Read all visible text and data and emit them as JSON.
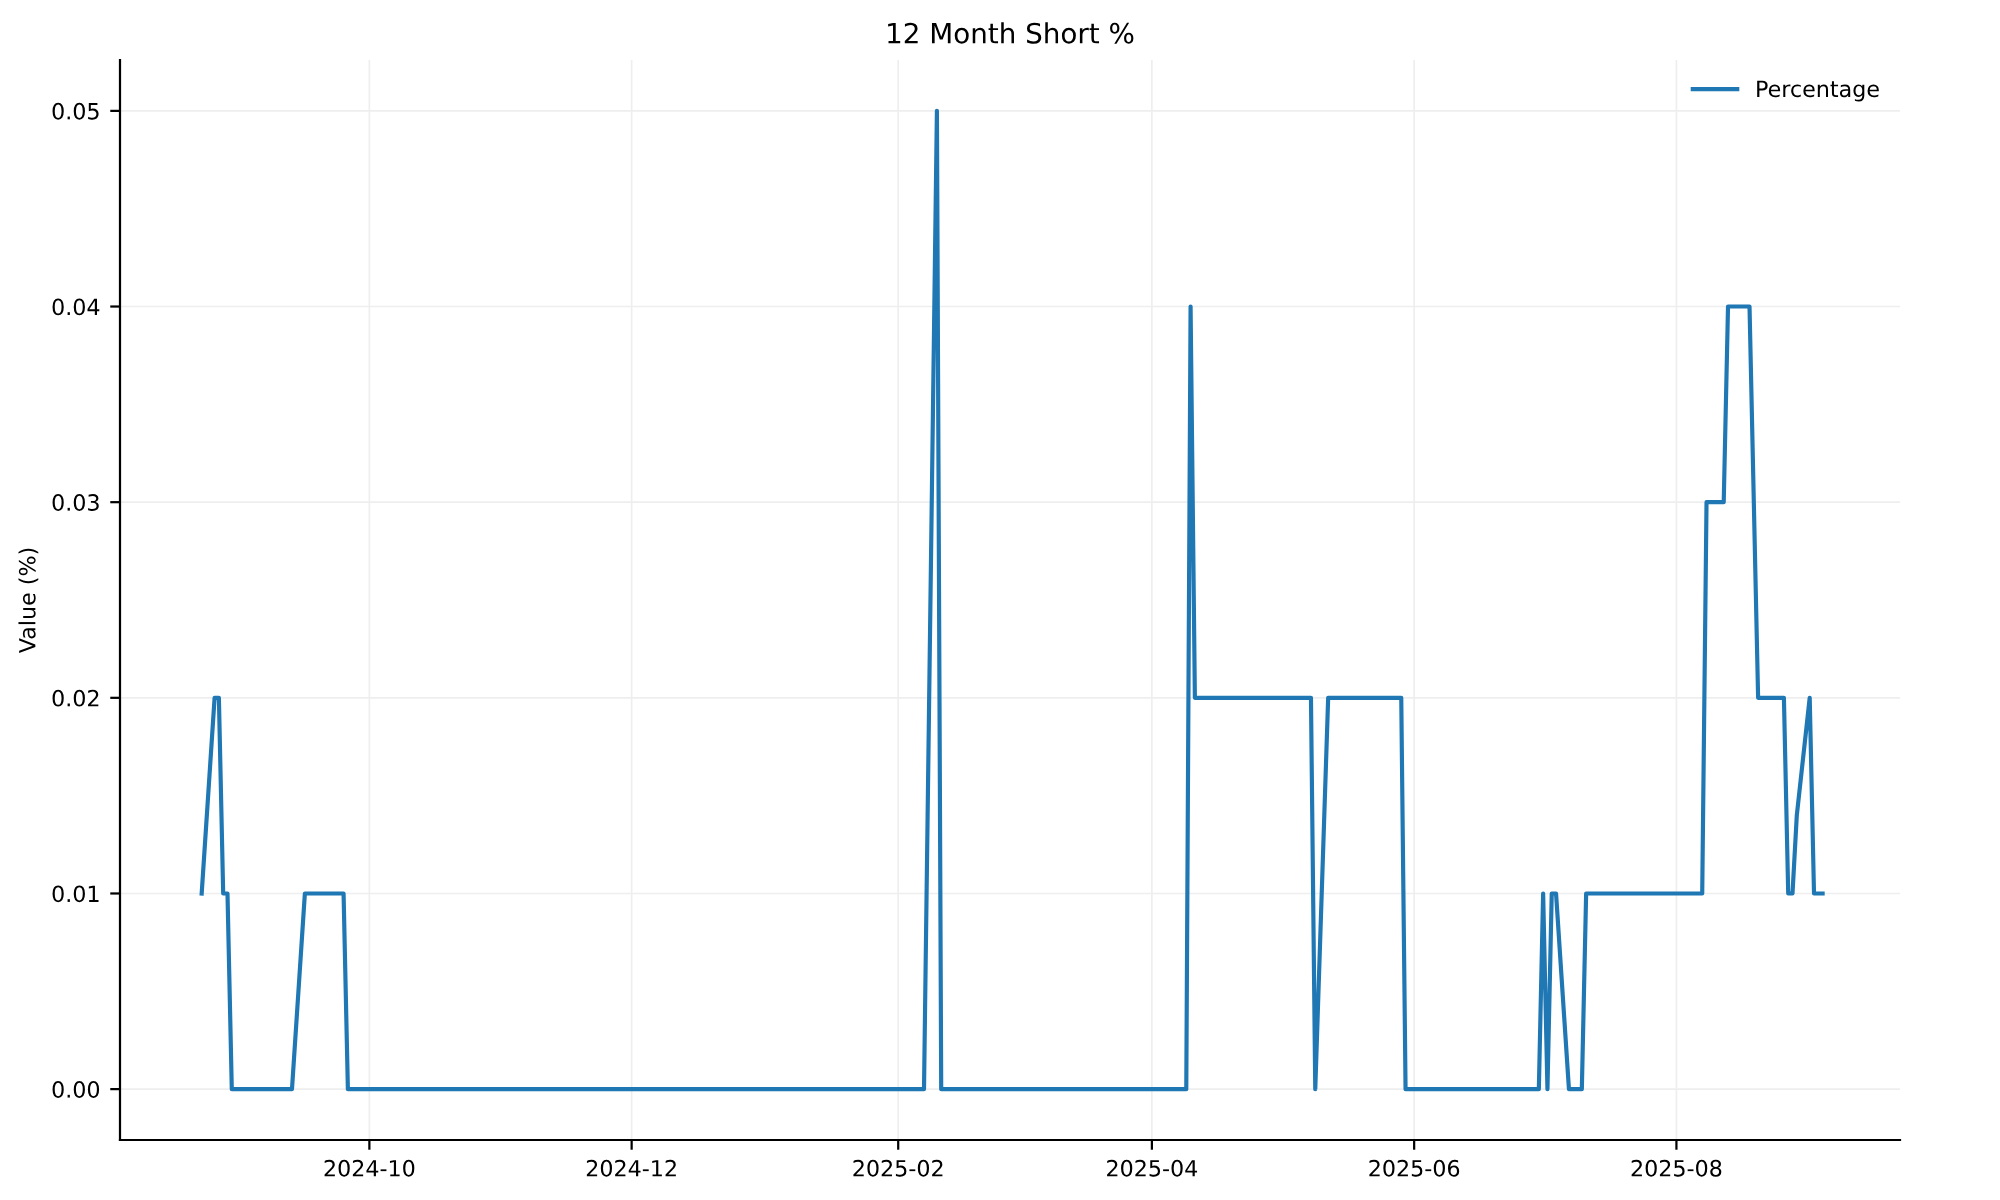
{
  "chart_data": {
    "type": "line",
    "title": "12 Month Short %",
    "ylabel": "Value (%)",
    "series": [
      {
        "name": "Percentage",
        "color": "#1f77b4",
        "x": [
          "2024-08-23",
          "2024-08-26",
          "2024-08-27",
          "2024-08-28",
          "2024-08-29",
          "2024-08-30",
          "2024-09-13",
          "2024-09-16",
          "2024-09-25",
          "2024-09-26",
          "2025-02-07",
          "2025-02-10",
          "2025-02-11",
          "2025-04-09",
          "2025-04-10",
          "2025-04-11",
          "2025-05-08",
          "2025-05-09",
          "2025-05-12",
          "2025-05-29",
          "2025-05-30",
          "2025-06-30",
          "2025-07-01",
          "2025-07-02",
          "2025-07-03",
          "2025-07-04",
          "2025-07-07",
          "2025-07-10",
          "2025-07-11",
          "2025-08-07",
          "2025-08-08",
          "2025-08-12",
          "2025-08-13",
          "2025-08-18",
          "2025-08-20",
          "2025-08-26",
          "2025-08-27",
          "2025-08-28",
          "2025-08-29",
          "2025-09-01",
          "2025-09-02",
          "2025-09-04"
        ],
        "values": [
          0.01,
          0.02,
          0.02,
          0.01,
          0.01,
          0,
          0,
          0.01,
          0.01,
          0,
          0,
          0.05,
          0,
          0,
          0.04,
          0.02,
          0.02,
          0,
          0.02,
          0.02,
          0,
          0,
          0.01,
          0,
          0.01,
          0.01,
          0,
          0,
          0.01,
          0.01,
          0.03,
          0.03,
          0.04,
          0.04,
          0.02,
          0.02,
          0.01,
          0.01,
          0.014,
          0.02,
          0.01,
          0.01
        ]
      }
    ],
    "xlim": [
      "2024-08-04",
      "2025-09-22"
    ],
    "xticks": [
      {
        "value": "2024-10-01",
        "label": "2024-10"
      },
      {
        "value": "2024-12-01",
        "label": "2024-12"
      },
      {
        "value": "2025-02-01",
        "label": "2025-02"
      },
      {
        "value": "2025-04-01",
        "label": "2025-04"
      },
      {
        "value": "2025-06-01",
        "label": "2025-06"
      },
      {
        "value": "2025-08-01",
        "label": "2025-08"
      }
    ],
    "ylim": [
      -0.0026,
      0.0526
    ],
    "yticks": [
      {
        "value": 0,
        "label": "0.00"
      },
      {
        "value": 0.01,
        "label": "0.01"
      },
      {
        "value": 0.02,
        "label": "0.02"
      },
      {
        "value": 0.03,
        "label": "0.03"
      },
      {
        "value": 0.04,
        "label": "0.04"
      },
      {
        "value": 0.05,
        "label": "0.05"
      }
    ],
    "grid": true,
    "legend": "top right",
    "marker": "none",
    "line_style": "solid"
  }
}
